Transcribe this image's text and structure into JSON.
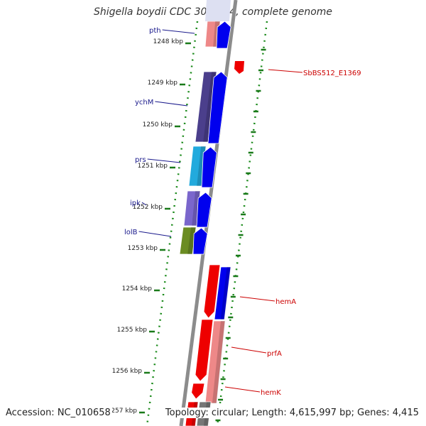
{
  "title": "Shigella boydii CDC 3083-94, complete genome",
  "accession_text": "Accession: NC_010658",
  "topology_text": "Topology: circular; Length: 4,615,997 bp; Genes: 4,415",
  "colors": {
    "backbone": "#8c8c8c",
    "dotted_ring": "#1a8a1a",
    "tick": "#1a7a1a",
    "label_left": "#1a1a8c",
    "label_right": "#cc0000",
    "gene_forward": "#0000ee",
    "rna_red": "#ee0000",
    "rna_pink": "#ee8888"
  },
  "kbp_ticks": [
    "1248 kbp",
    "1249 kbp",
    "1250 kbp",
    "1251 kbp",
    "1252 kbp",
    "1253 kbp",
    "1254 kbp",
    "1255 kbp",
    "1256 kbp",
    "1257 kbp"
  ],
  "left_labels": [
    "pth",
    "ychM",
    "prs",
    "ipk",
    "lolB"
  ],
  "right_labels": [
    "SbBS512_E1369",
    "hemA",
    "prfA",
    "hemK"
  ],
  "inner_features": [
    {
      "name": "pth",
      "color": "#ee8888"
    },
    {
      "name": "ychM",
      "color": "#4b3f8c"
    },
    {
      "name": "prs",
      "color": "#22aadd"
    },
    {
      "name": "ipk",
      "color": "#7a66cc"
    },
    {
      "name": "lolB",
      "color": "#6b8c22"
    }
  ],
  "icons": [
    "forward-gene-arrow-icon",
    "reverse-gene-arrow-icon"
  ]
}
